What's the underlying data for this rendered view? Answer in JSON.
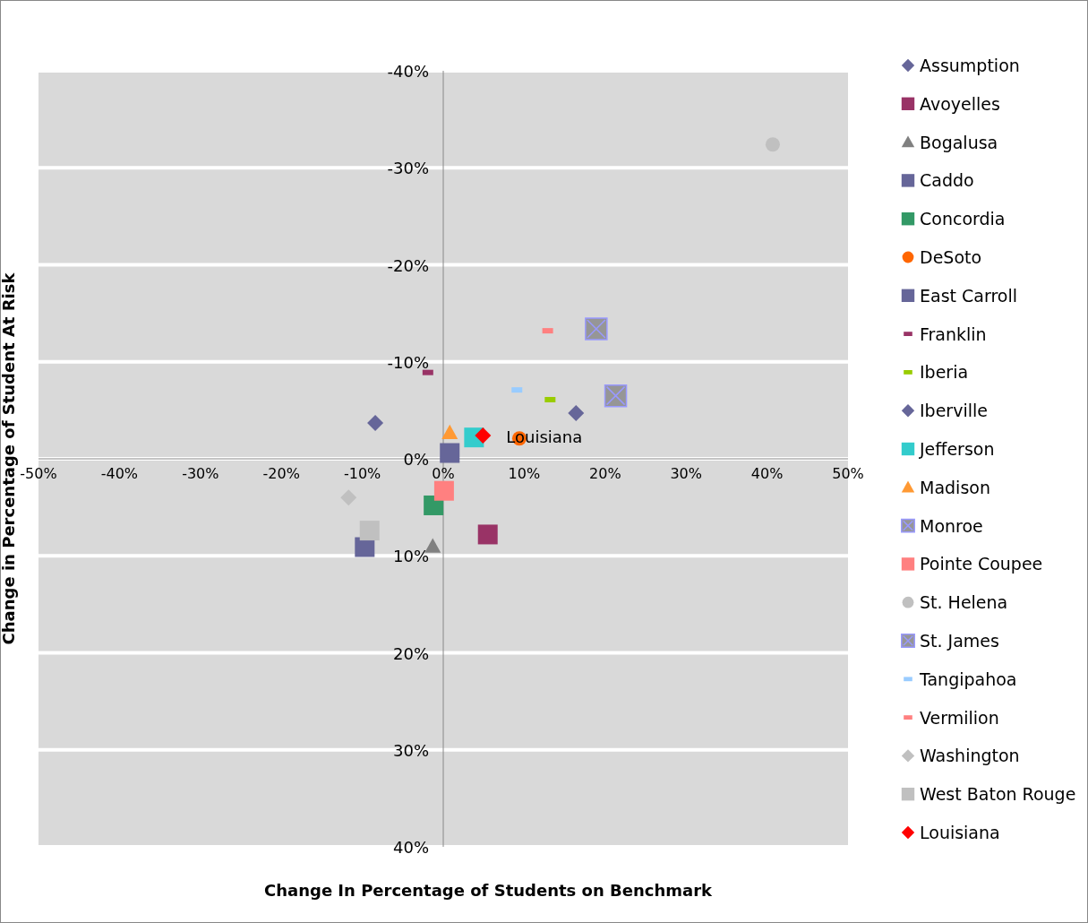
{
  "chart_data": {
    "type": "scatter",
    "xlabel": "Change In Percentage of Students on Benchmark",
    "ylabel": "Change in Percentage of Student At Risk",
    "xlim": [
      -50,
      50
    ],
    "xticks": [
      {
        "value": -50,
        "label": "-50%"
      },
      {
        "value": -40,
        "label": "-40%"
      },
      {
        "value": -30,
        "label": "-30%"
      },
      {
        "value": -20,
        "label": "-20%"
      },
      {
        "value": -10,
        "label": "-10%"
      },
      {
        "value": 0,
        "label": "0%"
      },
      {
        "value": 10,
        "label": "10%"
      },
      {
        "value": 20,
        "label": "20%"
      },
      {
        "value": 30,
        "label": "30%"
      },
      {
        "value": 40,
        "label": "40%"
      },
      {
        "value": 50,
        "label": "50%"
      }
    ],
    "ylim": [
      40,
      -40
    ],
    "yticks": [
      {
        "value": -40,
        "label": "-40%"
      },
      {
        "value": -30,
        "label": "-30%"
      },
      {
        "value": -20,
        "label": "-20%"
      },
      {
        "value": -10,
        "label": "-10%"
      },
      {
        "value": 0,
        "label": "0%"
      },
      {
        "value": 10,
        "label": "10%"
      },
      {
        "value": 20,
        "label": "20%"
      },
      {
        "value": 30,
        "label": "30%"
      },
      {
        "value": 40,
        "label": "40%"
      }
    ],
    "grid": "y",
    "legend": "right",
    "annotations": [
      {
        "text": "Louisiana",
        "x": 4.9,
        "y": -2.4
      }
    ],
    "series": [
      {
        "name": "Assumption",
        "color": "#666699",
        "marker": "diamond",
        "x": [
          -8.4
        ],
        "values": [
          -3.7
        ]
      },
      {
        "name": "Avoyelles",
        "color": "#993366",
        "marker": "square",
        "x": [
          5.5
        ],
        "values": [
          7.8
        ]
      },
      {
        "name": "Bogalusa",
        "color": "#808080",
        "marker": "triangle",
        "x": [
          -1.3
        ],
        "values": [
          9.0
        ]
      },
      {
        "name": "Caddo",
        "color": "#666699",
        "marker": "square",
        "x": [
          -9.7
        ],
        "values": [
          9.1
        ]
      },
      {
        "name": "Concordia",
        "color": "#339966",
        "marker": "square",
        "x": [
          -1.2
        ],
        "values": [
          4.8
        ]
      },
      {
        "name": "DeSoto",
        "color": "#ff6600",
        "marker": "circle",
        "x": [
          9.4
        ],
        "values": [
          -2.1
        ]
      },
      {
        "name": "East Carroll",
        "color": "#666699",
        "marker": "square",
        "x": [
          0.8
        ],
        "values": [
          -0.6
        ]
      },
      {
        "name": "Franklin",
        "type": "scatter",
        "color": "#993366",
        "x": [
          -1.9
        ],
        "values": [
          -8.9
        ]
      },
      {
        "name": "Iberia",
        "type": "scatter",
        "color": "#99cc00",
        "x": [
          13.2
        ],
        "values": [
          -6.1
        ]
      },
      {
        "name": "Iberville",
        "color": "#666699",
        "marker": "diamond",
        "x": [
          16.4
        ],
        "values": [
          -4.7
        ]
      },
      {
        "name": "Jefferson",
        "color": "#33cccc",
        "marker": "square",
        "x": [
          3.8
        ],
        "values": [
          -2.2
        ]
      },
      {
        "name": "Madison",
        "color": "#ff9933",
        "marker": "triangle",
        "x": [
          0.8
        ],
        "values": [
          -2.7
        ]
      },
      {
        "name": "Monroe",
        "color": "#969696",
        "marker": "cross",
        "x": [
          21.3
        ],
        "values": [
          -6.5
        ]
      },
      {
        "name": "Pointe Coupee",
        "color": "#ff8080",
        "marker": "square",
        "x": [
          0.1
        ],
        "values": [
          3.3
        ]
      },
      {
        "name": "St. Helena",
        "color": "#c0c0c0",
        "marker": "circle",
        "x": [
          40.7
        ],
        "values": [
          -32.4
        ]
      },
      {
        "name": "St. James",
        "color": "#969696",
        "marker": "cross",
        "x": [
          18.9
        ],
        "values": [
          -13.4
        ]
      },
      {
        "name": "Tangipahoa",
        "type": "scatter",
        "color": "#99ccff",
        "x": [
          9.1
        ],
        "values": [
          -7.1
        ]
      },
      {
        "name": "Vermilion",
        "type": "scatter",
        "color": "#ff8080",
        "x": [
          12.9
        ],
        "values": [
          -13.2
        ]
      },
      {
        "name": "Washington",
        "color": "#c0c0c0",
        "marker": "diamond",
        "x": [
          -11.7
        ],
        "values": [
          4.0
        ]
      },
      {
        "name": "West Baton Rouge",
        "color": "#c0c0c0",
        "marker": "square",
        "x": [
          -9.1
        ],
        "values": [
          7.4
        ]
      },
      {
        "name": "Louisiana",
        "color": "#ff0000",
        "marker": "diamond",
        "x": [
          4.9
        ],
        "values": [
          -2.4
        ]
      }
    ]
  }
}
